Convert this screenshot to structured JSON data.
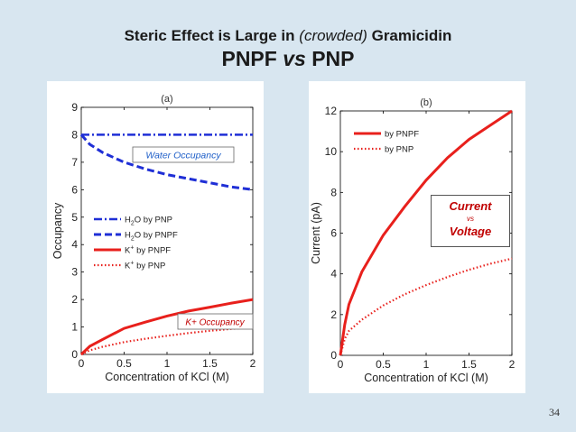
{
  "slide": {
    "title_part1": "Steric Effect is Large in ",
    "title_italic": "(crowded)",
    "title_part2": " Gramicidin",
    "subtitle_part1": "PNPF ",
    "subtitle_italic": "vs",
    "subtitle_part2": " PNP",
    "page_number": "34",
    "callout": {
      "line1": "Current",
      "line2": "vs",
      "line3": "Voltage"
    }
  },
  "colors": {
    "blue": "#1f2fd6",
    "red": "#e8201c",
    "annotation_blue": "#1f5fc8",
    "annotation_red": "#c00000"
  },
  "chart_data": [
    {
      "type": "line",
      "panel_label": "(a)",
      "xlabel": "Concentration of KCl (M)",
      "ylabel": "Occupancy",
      "xlim": [
        0,
        2
      ],
      "ylim": [
        0,
        9
      ],
      "xticks": [
        "0",
        "0.5",
        "1",
        "1.5",
        "2"
      ],
      "yticks": [
        "0",
        "1",
        "2",
        "3",
        "4",
        "5",
        "6",
        "7",
        "8",
        "9"
      ],
      "annotations": [
        "Water Occupancy",
        "K+ Occupancy"
      ],
      "legend_position": "middle-left",
      "series": [
        {
          "name": "H2O by PNP",
          "legend_main": "H",
          "legend_sub": "2",
          "legend_rest": "O by PNP",
          "color": "blue",
          "style": "dashdot",
          "x": [
            0,
            0.5,
            1,
            1.5,
            2
          ],
          "y": [
            8,
            8,
            8,
            8,
            8
          ]
        },
        {
          "name": "H2O by PNPF",
          "legend_main": "H",
          "legend_sub": "2",
          "legend_rest": "O by PNPF",
          "color": "blue",
          "style": "dashed",
          "x": [
            0,
            0.1,
            0.25,
            0.5,
            0.75,
            1,
            1.25,
            1.5,
            1.75,
            2
          ],
          "y": [
            8,
            7.65,
            7.35,
            7.0,
            6.75,
            6.55,
            6.4,
            6.25,
            6.1,
            6.0
          ]
        },
        {
          "name": "K+ by PNPF",
          "legend_main": "K",
          "legend_sup": "+",
          "legend_rest": " by PNPF",
          "color": "red",
          "style": "solid",
          "x": [
            0,
            0.1,
            0.25,
            0.5,
            0.75,
            1,
            1.25,
            1.5,
            1.75,
            2
          ],
          "y": [
            0,
            0.3,
            0.55,
            0.95,
            1.18,
            1.4,
            1.58,
            1.72,
            1.87,
            2.0
          ]
        },
        {
          "name": "K+ by PNP",
          "legend_main": "K",
          "legend_sup": "+",
          "legend_rest": " by PNP",
          "color": "red",
          "style": "dotted",
          "x": [
            0,
            0.1,
            0.25,
            0.5,
            0.75,
            1,
            1.25,
            1.5,
            1.75,
            2
          ],
          "y": [
            0,
            0.15,
            0.28,
            0.45,
            0.57,
            0.68,
            0.78,
            0.86,
            0.93,
            1.0
          ]
        }
      ]
    },
    {
      "type": "line",
      "panel_label": "(b)",
      "xlabel": "Concentration of KCl (M)",
      "ylabel": "Current (pA)",
      "xlim": [
        0,
        2
      ],
      "ylim": [
        0,
        12
      ],
      "xticks": [
        "0",
        "0.5",
        "1",
        "1.5",
        "2"
      ],
      "yticks": [
        "0",
        "2",
        "4",
        "6",
        "8",
        "10",
        "12"
      ],
      "legend_position": "top-left",
      "series": [
        {
          "name": "by PNPF",
          "legend_rest": "by PNPF",
          "color": "red",
          "style": "solid",
          "x": [
            0,
            0.05,
            0.1,
            0.25,
            0.5,
            0.75,
            1,
            1.25,
            1.5,
            1.75,
            2
          ],
          "y": [
            0,
            1.5,
            2.5,
            4.1,
            5.9,
            7.3,
            8.6,
            9.7,
            10.6,
            11.3,
            12.0
          ]
        },
        {
          "name": "by PNP",
          "legend_rest": "by PNP",
          "color": "red",
          "style": "dotted",
          "x": [
            0,
            0.05,
            0.1,
            0.25,
            0.5,
            0.75,
            1,
            1.25,
            1.5,
            1.75,
            2
          ],
          "y": [
            0,
            0.8,
            1.2,
            1.75,
            2.45,
            3.0,
            3.45,
            3.85,
            4.2,
            4.5,
            4.75
          ]
        }
      ]
    }
  ]
}
